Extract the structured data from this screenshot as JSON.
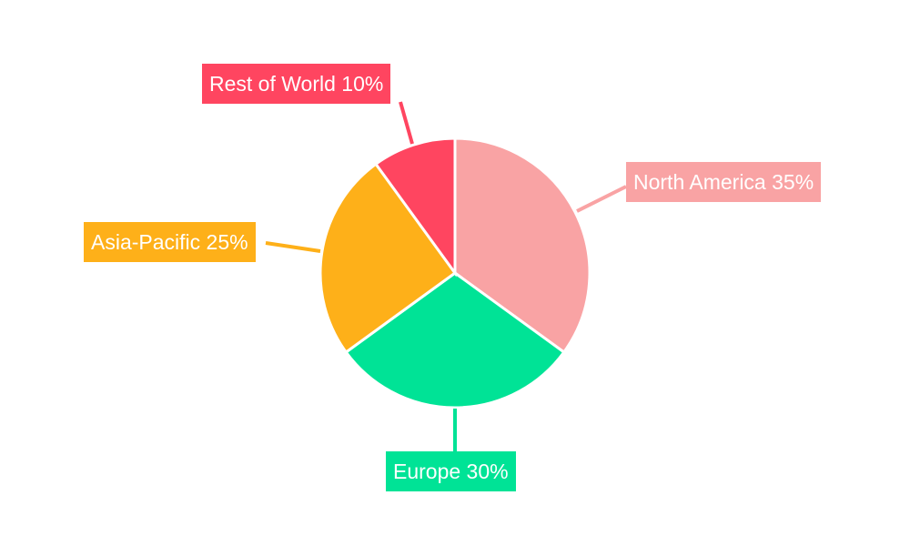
{
  "chart_data": {
    "type": "pie",
    "title": "",
    "start_angle": "top, clockwise",
    "slices": [
      {
        "label": "North America",
        "value": 35,
        "text": "North America 35%",
        "color": "#F9A3A4"
      },
      {
        "label": "Europe",
        "value": 30,
        "text": "Europe 30%",
        "color": "#00E396"
      },
      {
        "label": "Asia-Pacific",
        "value": 25,
        "text": "Asia-Pacific 25%",
        "color": "#FEB019"
      },
      {
        "label": "Rest of World",
        "value": 10,
        "text": "Rest of World 10%",
        "color": "#FF4560"
      }
    ],
    "legend": "none",
    "labels": "outside callouts"
  }
}
